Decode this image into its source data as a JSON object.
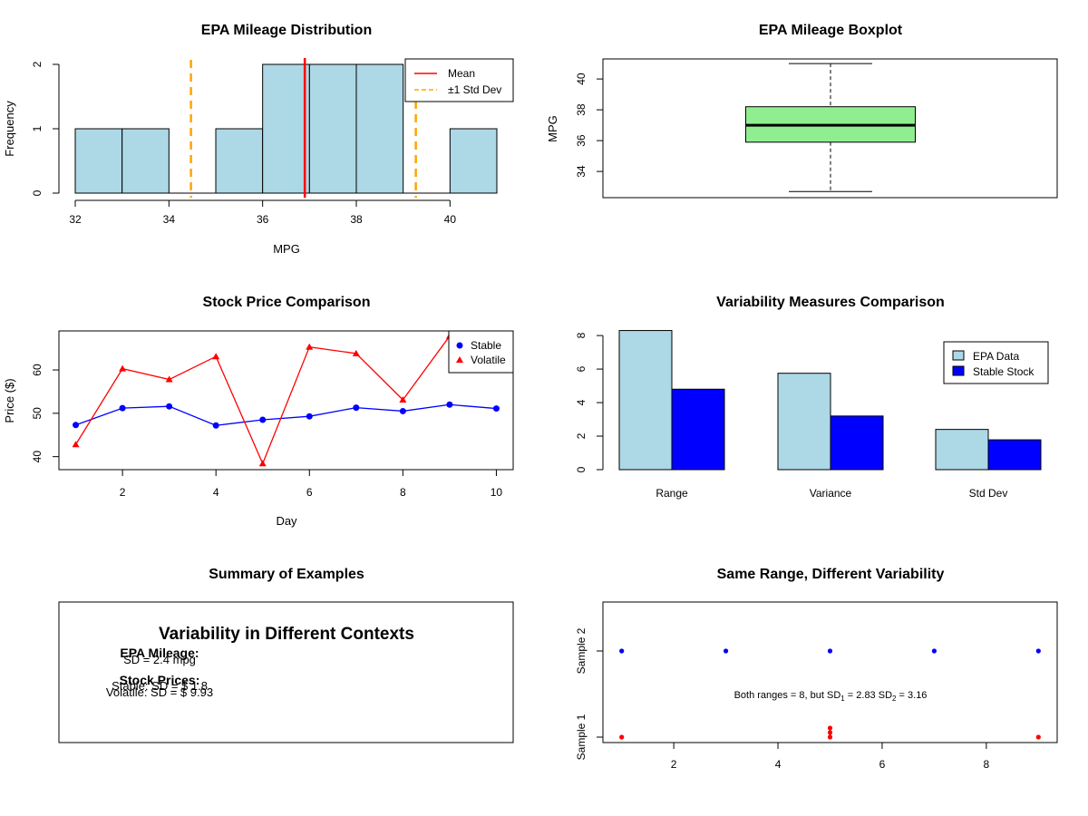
{
  "chart_data": [
    {
      "type": "bar",
      "subtype": "histogram",
      "title": "EPA Mileage Distribution",
      "xlabel": "MPG",
      "ylabel": "Frequency",
      "xlim": [
        32,
        41
      ],
      "ylim": [
        0,
        2
      ],
      "x_ticks": [
        "32",
        "34",
        "36",
        "38",
        "40"
      ],
      "y_ticks": [
        "0",
        "1",
        "2"
      ],
      "bins": [
        {
          "from": 32,
          "to": 33,
          "count": 1
        },
        {
          "from": 33,
          "to": 34,
          "count": 1
        },
        {
          "from": 34,
          "to": 35,
          "count": 0
        },
        {
          "from": 35,
          "to": 36,
          "count": 1
        },
        {
          "from": 36,
          "to": 37,
          "count": 2
        },
        {
          "from": 37,
          "to": 38,
          "count": 2
        },
        {
          "from": 38,
          "to": 39,
          "count": 2
        },
        {
          "from": 39,
          "to": 40,
          "count": 0
        },
        {
          "from": 40,
          "to": 41,
          "count": 1
        }
      ],
      "mean": 36.9,
      "sd_lines": [
        34.47,
        39.27
      ],
      "legend": [
        "Mean",
        "±1 Std Dev"
      ],
      "legend_position": "top-right",
      "colors": {
        "bars": "#add8e6",
        "mean": "#ff0000",
        "sd": "#ffa500"
      }
    },
    {
      "type": "boxplot",
      "title": "EPA Mileage Boxplot",
      "ylabel": "MPG",
      "ylim": [
        32.3,
        41.3
      ],
      "y_ticks": [
        "34",
        "36",
        "38",
        "40"
      ],
      "min": 32.7,
      "q1": 35.9,
      "median": 37.0,
      "q3": 38.2,
      "max": 41.0,
      "colors": {
        "box": "#90ee90"
      }
    },
    {
      "type": "line",
      "title": "Stock Price Comparison",
      "xlabel": "Day",
      "ylabel": "Price ($)",
      "xlim": [
        0.64,
        10.36
      ],
      "ylim": [
        37,
        69
      ],
      "x_ticks": [
        "2",
        "4",
        "6",
        "8",
        "10"
      ],
      "y_ticks": [
        "40",
        "50",
        "60"
      ],
      "x": [
        1,
        2,
        3,
        4,
        5,
        6,
        7,
        8,
        9,
        10
      ],
      "series": [
        {
          "name": "Stable",
          "values": [
            47.3,
            51.2,
            51.6,
            47.2,
            48.5,
            49.3,
            51.3,
            50.5,
            52.0,
            51.1
          ],
          "color": "#0000ff",
          "marker": "circle"
        },
        {
          "name": "Volatile",
          "values": [
            42.8,
            60.3,
            57.8,
            63.1,
            38.4,
            65.3,
            63.8,
            53.1,
            67.8,
            null
          ],
          "color": "#ff0000",
          "marker": "triangle"
        }
      ],
      "legend_position": "top-right"
    },
    {
      "type": "bar",
      "title": "Variability Measures Comparison",
      "categories": [
        "Range",
        "Variance",
        "Std Dev"
      ],
      "ylim": [
        0,
        8.6
      ],
      "y_ticks": [
        "0",
        "2",
        "4",
        "6",
        "8"
      ],
      "series": [
        {
          "name": "EPA Data",
          "values": [
            8.3,
            5.75,
            2.4
          ],
          "color": "#add8e6"
        },
        {
          "name": "Stable Stock",
          "values": [
            4.8,
            3.2,
            1.78
          ],
          "color": "#0000ff"
        }
      ],
      "legend_position": "top-right"
    },
    {
      "type": "table",
      "title": "Summary of Examples",
      "heading": "Variability in Different Contexts",
      "epa_head": "EPA Mileage:",
      "epa_sd": "SD = 2.4 mpg",
      "stock_head": "Stock Prices:",
      "stable_sd": "Stable: SD = $ 1.8",
      "volatile_sd": "Volatile: SD = $ 9.93"
    },
    {
      "type": "scatter",
      "title": "Same Range, Different Variability",
      "xlim": [
        0.64,
        9.36
      ],
      "x_ticks": [
        "2",
        "4",
        "6",
        "8"
      ],
      "y_ticks": [
        "Sample 1",
        "Sample 2"
      ],
      "series": [
        {
          "name": "Sample 1",
          "x": [
            1,
            5,
            5,
            5,
            9
          ],
          "color": "#ff0000"
        },
        {
          "name": "Sample 2",
          "x": [
            1,
            3,
            5,
            7,
            9
          ],
          "color": "#0000ff"
        }
      ],
      "annotation": {
        "prefix": "Both ranges = 8, but SD",
        "sub1": "1",
        "mid": " = 2.83 SD",
        "sub2": "2",
        "suffix": " = 3.16"
      }
    }
  ]
}
